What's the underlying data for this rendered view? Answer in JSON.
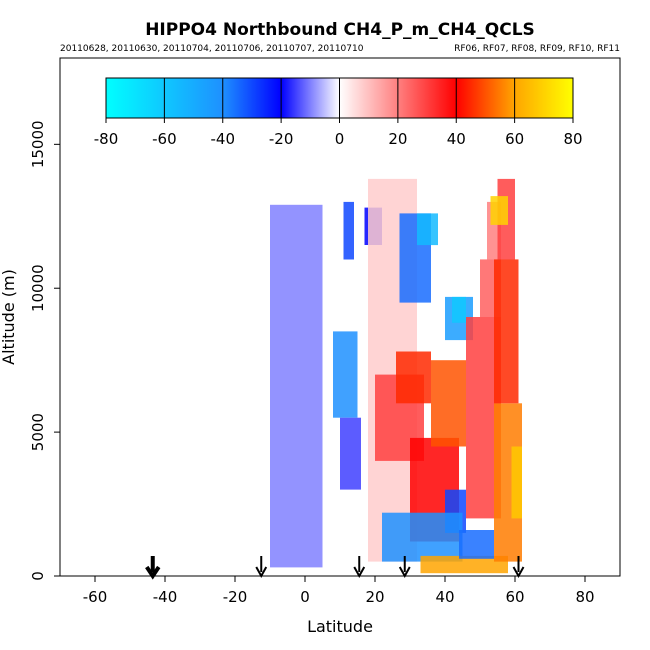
{
  "chart_data": {
    "type": "heatmap",
    "title": "HIPPO4 Northbound CH4_P_m_CH4_QCLS",
    "subtitle_left": "20110628, 20110630, 20110704, 20110706, 20110707, 20110710",
    "subtitle_right": "RF06, RF07, RF08, RF09, RF10, RF11",
    "xlabel": "Latitude",
    "ylabel": "Altitude (m)",
    "xlim": [
      -70,
      90
    ],
    "ylim": [
      0,
      18000
    ],
    "x_ticks": [
      -60,
      -40,
      -20,
      0,
      20,
      40,
      60,
      80
    ],
    "y_ticks": [
      0,
      5000,
      10000,
      15000
    ],
    "grid": false,
    "colorbar": {
      "position": "top",
      "min": -80,
      "max": 80,
      "ticks": [
        -80,
        -60,
        -40,
        -20,
        0,
        20,
        40,
        60,
        80
      ],
      "colors": [
        "#00ffff",
        "#1e90ff",
        "#0000ff",
        "#ffffff",
        "#ff0000",
        "#ffa500",
        "#ffff00"
      ]
    },
    "arrows": [
      {
        "latitude": -43.5,
        "bold": true
      },
      {
        "latitude": -12.5,
        "bold": false
      },
      {
        "latitude": 15.5,
        "bold": false
      },
      {
        "latitude": 28.5,
        "bold": false
      },
      {
        "latitude": 61,
        "bold": false
      }
    ],
    "data_extent": {
      "lat_range": [
        -10,
        62
      ],
      "alt_range": [
        0,
        13800
      ]
    },
    "regions": [
      {
        "lat": [
          -10,
          5
        ],
        "alt": [
          300,
          12900
        ],
        "value": -10
      },
      {
        "lat": [
          5,
          18
        ],
        "alt": [
          300,
          12900
        ],
        "value": 0
      },
      {
        "lat": [
          8,
          15
        ],
        "alt": [
          5500,
          8500
        ],
        "value": -40
      },
      {
        "lat": [
          10,
          16
        ],
        "alt": [
          3000,
          5500
        ],
        "value": -15
      },
      {
        "lat": [
          11,
          14
        ],
        "alt": [
          11000,
          13000
        ],
        "value": -30
      },
      {
        "lat": [
          17,
          22
        ],
        "alt": [
          11500,
          12800
        ],
        "value": -20
      },
      {
        "lat": [
          18,
          32
        ],
        "alt": [
          500,
          13800
        ],
        "value": 8
      },
      {
        "lat": [
          27,
          36
        ],
        "alt": [
          9500,
          12600
        ],
        "value": -35
      },
      {
        "lat": [
          32,
          38
        ],
        "alt": [
          11500,
          12600
        ],
        "value": -55
      },
      {
        "lat": [
          20,
          34
        ],
        "alt": [
          4000,
          7000
        ],
        "value": 30
      },
      {
        "lat": [
          26,
          36
        ],
        "alt": [
          6000,
          7800
        ],
        "value": 45
      },
      {
        "lat": [
          30,
          44
        ],
        "alt": [
          1200,
          4800
        ],
        "value": 40
      },
      {
        "lat": [
          36,
          46
        ],
        "alt": [
          4500,
          7500
        ],
        "value": 50
      },
      {
        "lat": [
          40,
          46
        ],
        "alt": [
          1500,
          3000
        ],
        "value": -30
      },
      {
        "lat": [
          22,
          45
        ],
        "alt": [
          500,
          2200
        ],
        "value": -40
      },
      {
        "lat": [
          40,
          48
        ],
        "alt": [
          8200,
          9700
        ],
        "value": -45
      },
      {
        "lat": [
          42,
          46
        ],
        "alt": [
          8800,
          9700
        ],
        "value": -60
      },
      {
        "lat": [
          33,
          58
        ],
        "alt": [
          100,
          700
        ],
        "value": 60
      },
      {
        "lat": [
          44,
          54
        ],
        "alt": [
          600,
          1600
        ],
        "value": -35
      },
      {
        "lat": [
          46,
          56
        ],
        "alt": [
          2000,
          9000
        ],
        "value": 30
      },
      {
        "lat": [
          50,
          56
        ],
        "alt": [
          9000,
          11000
        ],
        "value": 25
      },
      {
        "lat": [
          52,
          56
        ],
        "alt": [
          11000,
          13000
        ],
        "value": 20
      },
      {
        "lat": [
          54,
          62
        ],
        "alt": [
          500,
          6000
        ],
        "value": 55
      },
      {
        "lat": [
          54,
          61
        ],
        "alt": [
          6000,
          11000
        ],
        "value": 45
      },
      {
        "lat": [
          55,
          60
        ],
        "alt": [
          11000,
          13800
        ],
        "value": 30
      },
      {
        "lat": [
          53,
          58
        ],
        "alt": [
          12200,
          13200
        ],
        "value": 70
      },
      {
        "lat": [
          59,
          62
        ],
        "alt": [
          2000,
          4500
        ],
        "value": 68
      }
    ]
  }
}
